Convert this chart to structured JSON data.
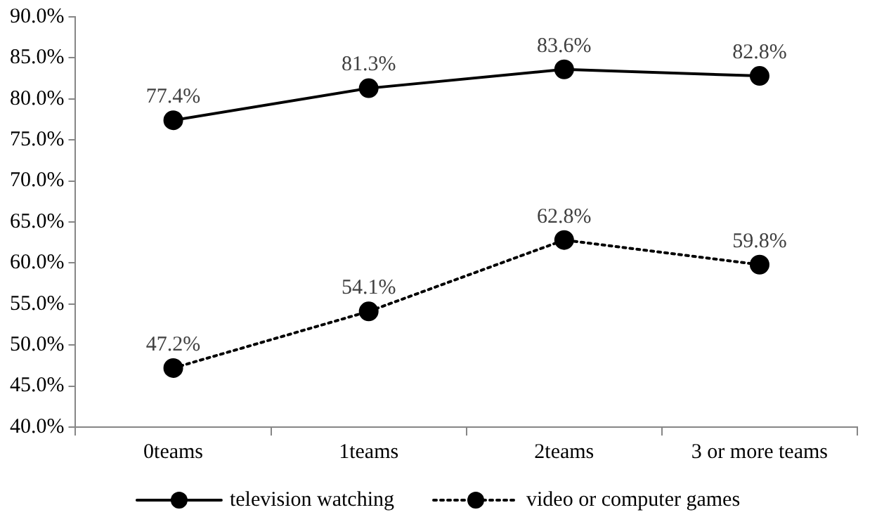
{
  "chart_data": {
    "type": "line",
    "categories": [
      "0teams",
      "1teams",
      "2teams",
      "3 or more teams"
    ],
    "series": [
      {
        "name": "television watching",
        "color": "#000000",
        "line_style": "solid",
        "values": [
          77.4,
          81.3,
          83.6,
          82.8
        ],
        "value_labels": [
          "77.4%",
          "81.3%",
          "83.6%",
          "82.8%"
        ]
      },
      {
        "name": "video or computer games",
        "color": "#000000",
        "line_style": "dotted",
        "values": [
          47.2,
          54.1,
          62.8,
          59.8
        ],
        "value_labels": [
          "47.2%",
          "54.1%",
          "62.8%",
          "59.8%"
        ]
      }
    ],
    "ylim": [
      40,
      90
    ],
    "yticks": [
      {
        "value": 40,
        "label": "40.0%"
      },
      {
        "value": 45,
        "label": "45.0%"
      },
      {
        "value": 50,
        "label": "50.0%"
      },
      {
        "value": 55,
        "label": "55.0%"
      },
      {
        "value": 60,
        "label": "60.0%"
      },
      {
        "value": 65,
        "label": "65.0%"
      },
      {
        "value": 70,
        "label": "70.0%"
      },
      {
        "value": 75,
        "label": "75.0%"
      },
      {
        "value": 80,
        "label": "80.0%"
      },
      {
        "value": 85,
        "label": "85.0%"
      },
      {
        "value": 90,
        "label": "90.0%"
      }
    ],
    "grid": false,
    "legend": "bottom",
    "marker": "circle"
  }
}
